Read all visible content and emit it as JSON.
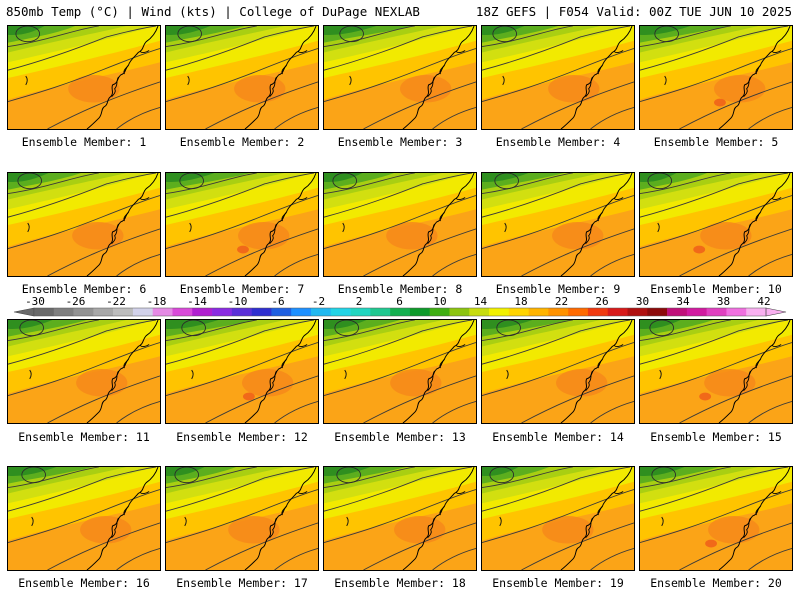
{
  "header": {
    "left": "850mb Temp (°C) | Wind (kts) | College of DuPage NEXLAB",
    "right": "18Z GEFS | F054 Valid: 00Z TUE JUN 10 2025"
  },
  "panels": [
    {
      "label": "Ensemble Member: 1"
    },
    {
      "label": "Ensemble Member: 2"
    },
    {
      "label": "Ensemble Member: 3"
    },
    {
      "label": "Ensemble Member: 4"
    },
    {
      "label": "Ensemble Member: 5"
    },
    {
      "label": "Ensemble Member: 6"
    },
    {
      "label": "Ensemble Member: 7"
    },
    {
      "label": "Ensemble Member: 8"
    },
    {
      "label": "Ensemble Member: 9"
    },
    {
      "label": "Ensemble Member: 10"
    },
    {
      "label": "Ensemble Member: 11"
    },
    {
      "label": "Ensemble Member: 12"
    },
    {
      "label": "Ensemble Member: 13"
    },
    {
      "label": "Ensemble Member: 14"
    },
    {
      "label": "Ensemble Member: 15"
    },
    {
      "label": "Ensemble Member: 16"
    },
    {
      "label": "Ensemble Member: 17"
    },
    {
      "label": "Ensemble Member: 18"
    },
    {
      "label": "Ensemble Member: 19"
    },
    {
      "label": "Ensemble Member: 20"
    }
  ],
  "colorbar": {
    "labels": [
      "-30",
      "-26",
      "-22",
      "-18",
      "-14",
      "-10",
      "-6",
      "-2",
      "2",
      "6",
      "10",
      "14",
      "18",
      "22",
      "26",
      "30",
      "34",
      "38",
      "42"
    ],
    "colors": [
      "#6a6a6a",
      "#7f7f7f",
      "#939393",
      "#a8a8a8",
      "#bdbdbd",
      "#d2d2ea",
      "#e58ae5",
      "#d94ad9",
      "#b01fd0",
      "#8a2be2",
      "#5b2fd8",
      "#2f2fd0",
      "#1f5fe0",
      "#1e90ff",
      "#22b8f0",
      "#23d4e6",
      "#22d6c0",
      "#20c890",
      "#15b050",
      "#0e9a2a",
      "#3fae12",
      "#8cc410",
      "#c7dc10",
      "#f2f000",
      "#ffd400",
      "#ffb400",
      "#ff9200",
      "#ff6a00",
      "#f03a10",
      "#d81a1a",
      "#b01010",
      "#8c0a0a",
      "#c0107a",
      "#d11aa0",
      "#e040c0",
      "#f070e0",
      "#f8b0f0"
    ]
  },
  "palette": {
    "darkgreen": "#2f8f1f",
    "green": "#5cae1e",
    "lime": "#a9cf12",
    "yellowgreen": "#d2df10",
    "yellow": "#f2ea00",
    "gold": "#ffc400",
    "orange": "#fba417",
    "deeporange": "#f68a1a",
    "red": "#ef5a1a"
  }
}
